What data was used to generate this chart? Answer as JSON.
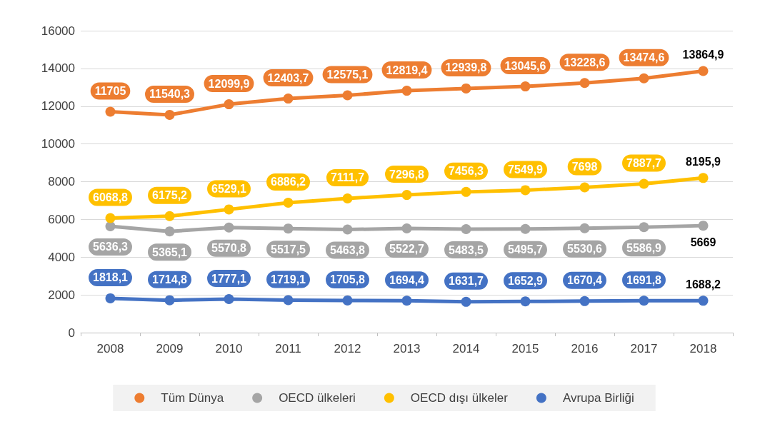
{
  "chart_data": {
    "type": "line",
    "categories": [
      "2008",
      "2009",
      "2010",
      "2011",
      "2012",
      "2013",
      "2014",
      "2015",
      "2016",
      "2017",
      "2018"
    ],
    "ylim": [
      0,
      16000
    ],
    "yticks": [
      0,
      2000,
      4000,
      6000,
      8000,
      10000,
      12000,
      14000,
      16000
    ],
    "grid": "y",
    "legend": "bottom",
    "marker": "circle",
    "line_style": "solid",
    "series": [
      {
        "name": "Tüm Dünya",
        "color": "#ed7d31",
        "values": [
          11705,
          11540.3,
          12099.9,
          12403.7,
          12575.1,
          12819.4,
          12939.8,
          13045.6,
          13228.6,
          13474.6,
          13864.9
        ],
        "value_labels": [
          "11705",
          "11540,3",
          "12099,9",
          "12403,7",
          "12575,1",
          "12819,4",
          "12939,8",
          "13045,6",
          "13228,6",
          "13474,6",
          "13864,9"
        ]
      },
      {
        "name": "OECD ülkeleri",
        "color": "#a5a5a5",
        "values": [
          5636.3,
          5365.1,
          5570.8,
          5517.5,
          5463.8,
          5522.7,
          5483.5,
          5495.7,
          5530.6,
          5586.9,
          5669
        ],
        "value_labels": [
          "5636,3",
          "5365,1",
          "5570,8",
          "5517,5",
          "5463,8",
          "5522,7",
          "5483,5",
          "5495,7",
          "5530,6",
          "5586,9",
          "5669"
        ]
      },
      {
        "name": "OECD dışı ülkeler",
        "color": "#ffc000",
        "values": [
          6068.8,
          6175.2,
          6529.1,
          6886.2,
          7111.7,
          7296.8,
          7456.3,
          7549.9,
          7698,
          7887.7,
          8195.9
        ],
        "value_labels": [
          "6068,8",
          "6175,2",
          "6529,1",
          "6886,2",
          "7111,7",
          "7296,8",
          "7456,3",
          "7549,9",
          "7698",
          "7887,7",
          "8195,9"
        ]
      },
      {
        "name": "Avrupa Birliği",
        "color": "#4472c4",
        "values": [
          1818.1,
          1714.8,
          1777.1,
          1719.1,
          1705.8,
          1694.4,
          1631.7,
          1652.9,
          1670.4,
          1691.8,
          1688.2
        ],
        "value_labels": [
          "1818,1",
          "1714,8",
          "1777,1",
          "1719,1",
          "1705,8",
          "1694,4",
          "1631,7",
          "1652,9",
          "1670,4",
          "1691,8",
          "1688,2"
        ]
      }
    ]
  }
}
